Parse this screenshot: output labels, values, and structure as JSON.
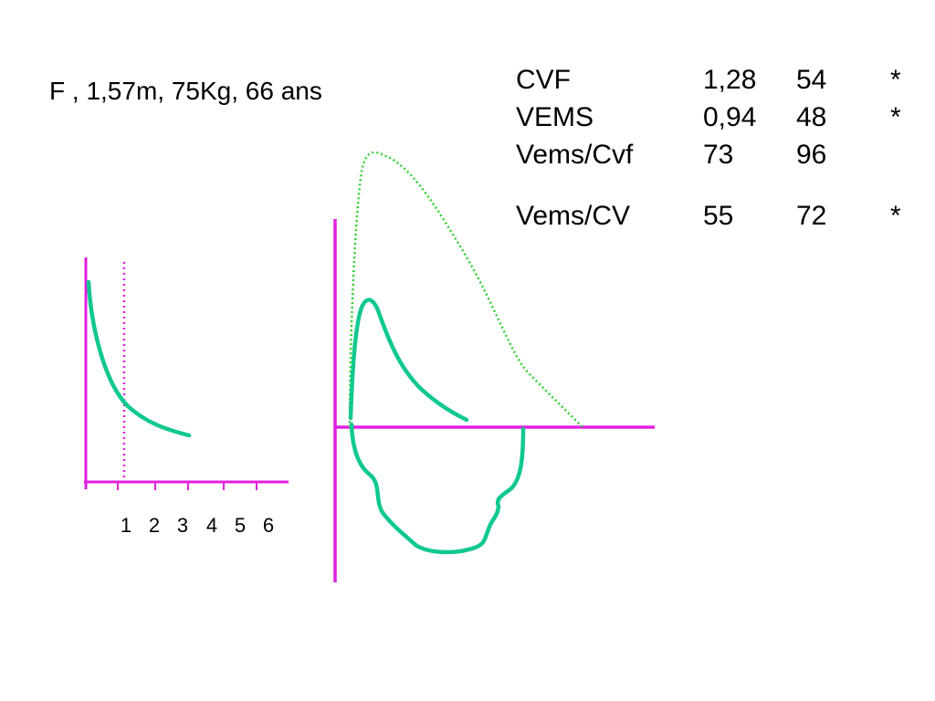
{
  "patient": {
    "summary": "F , 1,57m, 75Kg, 66 ans"
  },
  "results": {
    "rows": [
      {
        "label": "CVF",
        "measured": "1,28",
        "percent": "54",
        "flag": "*"
      },
      {
        "label": "VEMS",
        "measured": "0,94",
        "percent": "48",
        "flag": "*"
      },
      {
        "label": "Vems/Cvf",
        "measured": "73",
        "percent": "96",
        "flag": ""
      }
    ],
    "extra_row": {
      "label": "Vems/CV",
      "measured": "55",
      "percent": "72",
      "flag": "*"
    }
  },
  "volume_time_plot": {
    "x_tick_labels": [
      "1",
      "2",
      "3",
      "4",
      "5",
      "6"
    ],
    "marker_at_second": 1
  },
  "colors": {
    "axes": "#e020e0",
    "measured_curve": "#10c890",
    "predicted_curve": "#30d030",
    "marker": "#e020e0"
  }
}
